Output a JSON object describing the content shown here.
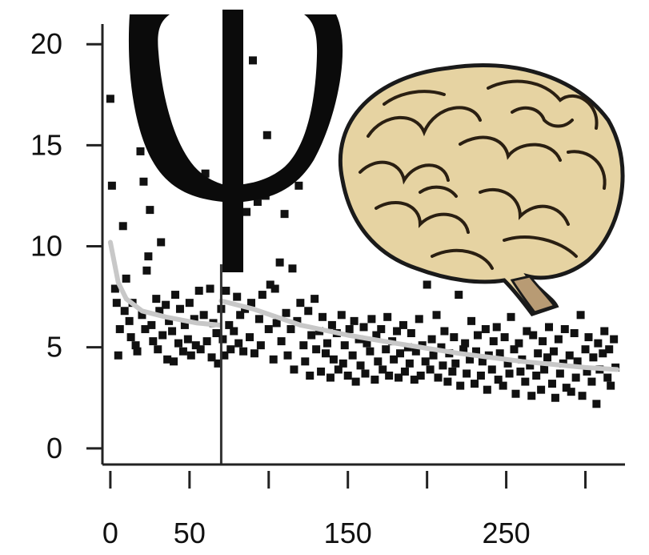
{
  "chart_data": {
    "type": "scatter",
    "xlim": [
      -5,
      325
    ],
    "ylim": [
      -0.8,
      21
    ],
    "x_ticks": [
      0,
      50,
      100,
      150,
      200,
      250,
      300
    ],
    "x_tick_labels": [
      {
        "value": 0,
        "label": "0"
      },
      {
        "value": 50,
        "label": "50"
      },
      {
        "value": 150,
        "label": "150"
      },
      {
        "value": 250,
        "label": "250"
      }
    ],
    "y_ticks": [
      {
        "value": 0,
        "label": "0"
      },
      {
        "value": 5,
        "label": "5"
      },
      {
        "value": 10,
        "label": "10"
      },
      {
        "value": 15,
        "label": "15"
      },
      {
        "value": 20,
        "label": "20"
      }
    ],
    "change_point_x": 70,
    "point_color": "#111111",
    "trend_color": "#c8c8c8",
    "trend": [
      [
        0,
        10.2
      ],
      [
        5,
        8.2
      ],
      [
        10,
        7.4
      ],
      [
        20,
        6.8
      ],
      [
        35,
        6.5
      ],
      [
        55,
        6.2
      ],
      [
        69,
        6.1
      ],
      [
        70,
        7.3
      ],
      [
        90,
        6.9
      ],
      [
        120,
        6.1
      ],
      [
        150,
        5.6
      ],
      [
        180,
        5.2
      ],
      [
        220,
        4.7
      ],
      [
        260,
        4.3
      ],
      [
        300,
        4.0
      ],
      [
        320,
        3.9
      ]
    ],
    "points": [
      [
        0,
        17.3
      ],
      [
        1,
        13
      ],
      [
        3,
        7.9
      ],
      [
        4,
        7.2
      ],
      [
        5,
        4.6
      ],
      [
        6,
        5.9
      ],
      [
        8,
        11
      ],
      [
        9,
        6.8
      ],
      [
        10,
        8.4
      ],
      [
        12,
        6.3
      ],
      [
        13,
        5.5
      ],
      [
        14,
        7.2
      ],
      [
        16,
        5.1
      ],
      [
        17,
        4.8
      ],
      [
        19,
        14.7
      ],
      [
        20,
        6.6
      ],
      [
        21,
        13.2
      ],
      [
        22,
        5.9
      ],
      [
        23,
        8.8
      ],
      [
        24,
        9.5
      ],
      [
        25,
        11.8
      ],
      [
        26,
        6.1
      ],
      [
        27,
        5.3
      ],
      [
        29,
        7.4
      ],
      [
        30,
        4.9
      ],
      [
        31,
        6.8
      ],
      [
        32,
        10.2
      ],
      [
        33,
        5.6
      ],
      [
        35,
        7.1
      ],
      [
        36,
        4.4
      ],
      [
        37,
        6.3
      ],
      [
        39,
        5.8
      ],
      [
        40,
        4.3
      ],
      [
        41,
        7.6
      ],
      [
        43,
        5.2
      ],
      [
        44,
        6.9
      ],
      [
        46,
        4.8
      ],
      [
        47,
        6.1
      ],
      [
        49,
        5.4
      ],
      [
        50,
        7.2
      ],
      [
        51,
        4.6
      ],
      [
        53,
        6.4
      ],
      [
        54,
        5.1
      ],
      [
        56,
        7.8
      ],
      [
        57,
        4.9
      ],
      [
        59,
        6.6
      ],
      [
        60,
        13.6
      ],
      [
        61,
        5.3
      ],
      [
        63,
        7.9
      ],
      [
        64,
        4.5
      ],
      [
        65,
        6.2
      ],
      [
        67,
        5.7
      ],
      [
        68,
        4.2
      ],
      [
        70,
        6.9
      ],
      [
        71,
        5.4
      ],
      [
        72,
        4.6
      ],
      [
        73,
        7.8
      ],
      [
        75,
        6.1
      ],
      [
        76,
        4.9
      ],
      [
        77,
        20.9
      ],
      [
        78,
        5.8
      ],
      [
        80,
        7.5
      ],
      [
        81,
        5.2
      ],
      [
        82,
        6.6
      ],
      [
        84,
        4.8
      ],
      [
        85,
        6.9
      ],
      [
        86,
        11.7
      ],
      [
        88,
        5.5
      ],
      [
        89,
        7.2
      ],
      [
        90,
        19.2
      ],
      [
        91,
        4.7
      ],
      [
        93,
        12.2
      ],
      [
        94,
        6.4
      ],
      [
        95,
        5.1
      ],
      [
        96,
        7.6
      ],
      [
        98,
        12.5
      ],
      [
        99,
        15.5
      ],
      [
        100,
        5.9
      ],
      [
        101,
        8.1
      ],
      [
        103,
        4.4
      ],
      [
        104,
        7.9
      ],
      [
        105,
        6.2
      ],
      [
        107,
        9.2
      ],
      [
        108,
        5.3
      ],
      [
        110,
        11.6
      ],
      [
        111,
        6.7
      ],
      [
        112,
        4.6
      ],
      [
        114,
        5.9
      ],
      [
        115,
        8.9
      ],
      [
        116,
        3.9
      ],
      [
        118,
        6.3
      ],
      [
        119,
        13.0
      ],
      [
        120,
        7.2
      ],
      [
        122,
        5.1
      ],
      [
        123,
        4.3
      ],
      [
        125,
        6.8
      ],
      [
        126,
        3.6
      ],
      [
        127,
        5.6
      ],
      [
        129,
        7.4
      ],
      [
        130,
        4.9
      ],
      [
        132,
        5.8
      ],
      [
        133,
        3.8
      ],
      [
        134,
        6.5
      ],
      [
        136,
        4.7
      ],
      [
        137,
        5.2
      ],
      [
        139,
        3.5
      ],
      [
        140,
        6.1
      ],
      [
        141,
        4.4
      ],
      [
        143,
        5.7
      ],
      [
        144,
        3.9
      ],
      [
        146,
        6.6
      ],
      [
        147,
        4.2
      ],
      [
        148,
        5.1
      ],
      [
        150,
        3.6
      ],
      [
        151,
        5.9
      ],
      [
        153,
        4.6
      ],
      [
        154,
        6.3
      ],
      [
        155,
        3.3
      ],
      [
        157,
        5.4
      ],
      [
        158,
        4.1
      ],
      [
        160,
        6.0
      ],
      [
        161,
        3.7
      ],
      [
        162,
        5.2
      ],
      [
        164,
        4.8
      ],
      [
        165,
        6.4
      ],
      [
        167,
        3.4
      ],
      [
        168,
        5.6
      ],
      [
        169,
        4.3
      ],
      [
        171,
        5.9
      ],
      [
        172,
        3.9
      ],
      [
        174,
        4.9
      ],
      [
        175,
        6.5
      ],
      [
        176,
        3.6
      ],
      [
        178,
        5.3
      ],
      [
        179,
        4.4
      ],
      [
        181,
        5.8
      ],
      [
        182,
        3.5
      ],
      [
        183,
        4.7
      ],
      [
        185,
        6.1
      ],
      [
        186,
        3.8
      ],
      [
        188,
        5.0
      ],
      [
        189,
        4.2
      ],
      [
        190,
        5.7
      ],
      [
        192,
        3.4
      ],
      [
        193,
        4.8
      ],
      [
        195,
        6.4
      ],
      [
        196,
        3.6
      ],
      [
        197,
        5.1
      ],
      [
        199,
        4.3
      ],
      [
        200,
        8.1
      ],
      [
        202,
        3.9
      ],
      [
        203,
        5.4
      ],
      [
        204,
        4.6
      ],
      [
        206,
        6.6
      ],
      [
        207,
        3.5
      ],
      [
        209,
        5.0
      ],
      [
        210,
        4.1
      ],
      [
        211,
        5.8
      ],
      [
        213,
        3.3
      ],
      [
        214,
        4.7
      ],
      [
        216,
        3.8
      ],
      [
        217,
        5.5
      ],
      [
        218,
        4.2
      ],
      [
        220,
        7.6
      ],
      [
        221,
        3.1
      ],
      [
        223,
        4.9
      ],
      [
        224,
        5.2
      ],
      [
        225,
        3.7
      ],
      [
        227,
        4.4
      ],
      [
        228,
        6.3
      ],
      [
        230,
        3.2
      ],
      [
        231,
        4.8
      ],
      [
        232,
        5.6
      ],
      [
        234,
        3.6
      ],
      [
        235,
        4.3
      ],
      [
        237,
        5.9
      ],
      [
        238,
        2.9
      ],
      [
        239,
        4.6
      ],
      [
        241,
        3.9
      ],
      [
        242,
        5.3
      ],
      [
        244,
        6.0
      ],
      [
        245,
        3.4
      ],
      [
        246,
        4.7
      ],
      [
        248,
        3.1
      ],
      [
        249,
        5.5
      ],
      [
        251,
        4.2
      ],
      [
        252,
        3.7
      ],
      [
        253,
        6.5
      ],
      [
        255,
        4.9
      ],
      [
        256,
        2.7
      ],
      [
        258,
        5.2
      ],
      [
        259,
        3.8
      ],
      [
        260,
        4.4
      ],
      [
        262,
        3.3
      ],
      [
        263,
        5.8
      ],
      [
        265,
        4.1
      ],
      [
        266,
        2.6
      ],
      [
        267,
        5.6
      ],
      [
        269,
        3.6
      ],
      [
        270,
        4.7
      ],
      [
        272,
        2.9
      ],
      [
        273,
        5.3
      ],
      [
        274,
        3.9
      ],
      [
        276,
        4.5
      ],
      [
        277,
        6.0
      ],
      [
        279,
        3.2
      ],
      [
        280,
        4.8
      ],
      [
        281,
        2.5
      ],
      [
        283,
        5.4
      ],
      [
        284,
        3.7
      ],
      [
        286,
        4.2
      ],
      [
        287,
        5.9
      ],
      [
        288,
        3.0
      ],
      [
        290,
        4.6
      ],
      [
        291,
        2.8
      ],
      [
        293,
        5.7
      ],
      [
        294,
        3.5
      ],
      [
        295,
        4.3
      ],
      [
        297,
        6.6
      ],
      [
        298,
        2.6
      ],
      [
        300,
        4.9
      ],
      [
        301,
        3.8
      ],
      [
        302,
        5.5
      ],
      [
        304,
        3.3
      ],
      [
        305,
        4.5
      ],
      [
        307,
        2.2
      ],
      [
        308,
        5.2
      ],
      [
        309,
        3.9
      ],
      [
        311,
        4.7
      ],
      [
        312,
        5.8
      ],
      [
        314,
        3.5
      ],
      [
        315,
        4.9
      ],
      [
        316,
        3.1
      ],
      [
        318,
        5.4
      ],
      [
        319,
        4.0
      ]
    ]
  }
}
